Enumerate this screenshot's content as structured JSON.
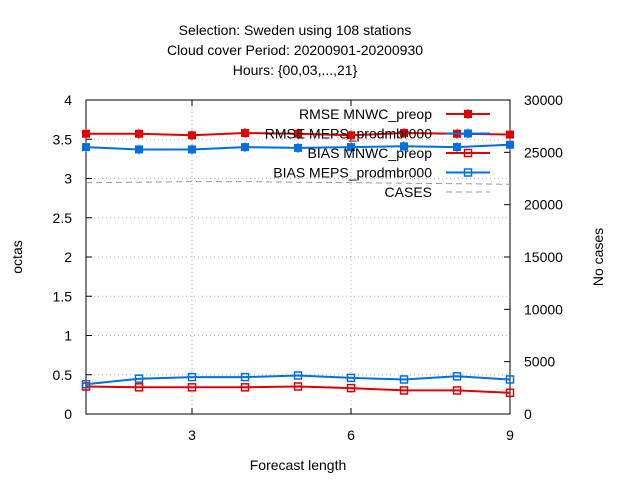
{
  "chart_data": {
    "type": "line",
    "title_lines": [
      "Selection: Sweden using   108 stations",
      "Cloud cover   Period: 20200901-20200930",
      "Hours: {00,03,...,21}"
    ],
    "xlabel": "Forecast length",
    "ylabel": "octas",
    "y2label": "No cases",
    "xlim": [
      1,
      9
    ],
    "ylim": [
      0,
      4
    ],
    "y2lim": [
      0,
      30000
    ],
    "xticks": [
      3,
      6,
      9
    ],
    "yticks": [
      0,
      0.5,
      1,
      1.5,
      2,
      2.5,
      3,
      3.5,
      4
    ],
    "y2ticks": [
      0,
      5000,
      10000,
      15000,
      20000,
      25000,
      30000
    ],
    "grid": true,
    "legend_position": "top-right",
    "x": [
      1,
      2,
      3,
      4,
      5,
      6,
      7,
      8,
      9
    ],
    "series": [
      {
        "name": "RMSE MNWC_preop",
        "axis": "y",
        "marker": "filled-square",
        "color": "#e00000",
        "values": [
          3.57,
          3.57,
          3.55,
          3.58,
          3.57,
          3.55,
          3.58,
          3.57,
          3.56
        ]
      },
      {
        "name": "RMSE MEPS_prodmbr000",
        "axis": "y",
        "marker": "filled-square",
        "color": "#0070e0",
        "values": [
          3.4,
          3.37,
          3.37,
          3.4,
          3.39,
          3.4,
          3.41,
          3.4,
          3.43
        ]
      },
      {
        "name": "BIAS MNWC_preop",
        "axis": "y",
        "marker": "open-square",
        "color": "#e00000",
        "values": [
          0.35,
          0.34,
          0.34,
          0.34,
          0.35,
          0.33,
          0.3,
          0.3,
          0.27
        ]
      },
      {
        "name": "BIAS MEPS_prodmbr000",
        "axis": "y",
        "marker": "open-square",
        "color": "#0070e0",
        "values": [
          0.38,
          0.45,
          0.47,
          0.47,
          0.49,
          0.46,
          0.44,
          0.48,
          0.44
        ]
      },
      {
        "name": "CASES",
        "axis": "y2",
        "marker": "none",
        "color": "#999999",
        "dashed": true,
        "values": [
          22100,
          22150,
          22200,
          22200,
          22150,
          22100,
          22050,
          22000,
          21950
        ]
      }
    ]
  }
}
